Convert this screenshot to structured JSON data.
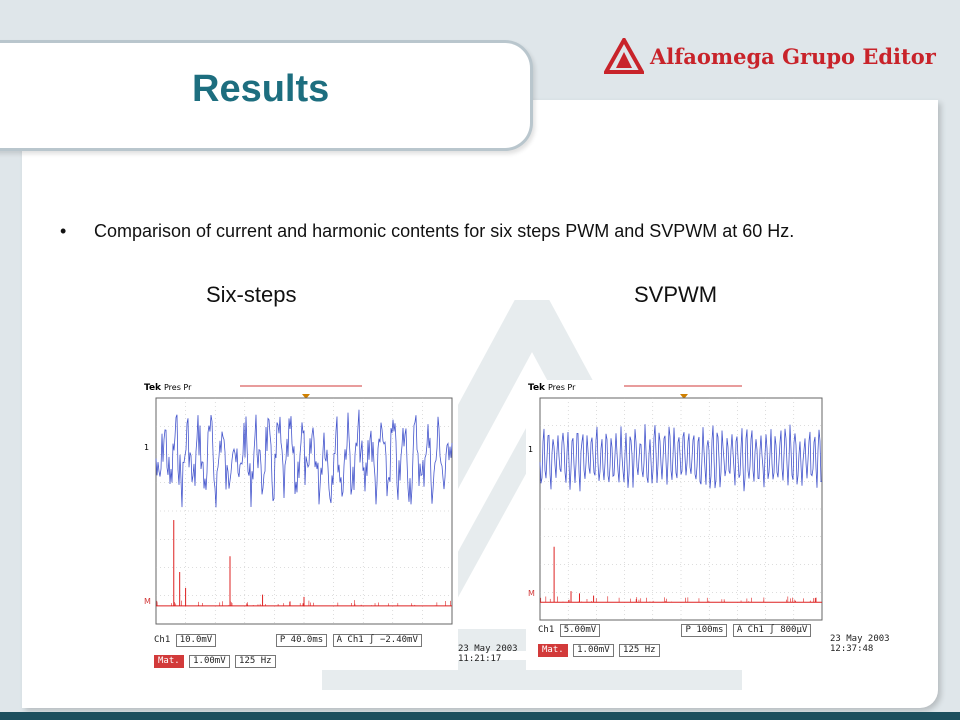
{
  "slide": {
    "title": "Results",
    "logo_text": "Alfaomega Grupo Editor",
    "bullet": "Comparison of current and harmonic contents for six steps PWM and SVPWM at 60 Hz.",
    "captions": {
      "left": "Six-steps",
      "right": "SVPWM"
    }
  },
  "colors": {
    "title": "#1d6e7f",
    "logo": "#c8232a",
    "trace_current": "#4455cc",
    "trace_fft": "#dd2020"
  },
  "scopes": [
    {
      "id": "six-steps",
      "brand": "Tek",
      "mode": "Pres Pr",
      "ch1_marker": "1",
      "math_marker": "M",
      "ch1_label": "Ch1",
      "ch1_scale": "10.0mV",
      "timebase": "P 40.0ms",
      "trigger": "A Ch1 ∫ −2.40mV",
      "math_label": "Mat.",
      "math_scale": "1.00mV",
      "math_freq": "125 Hz",
      "date": "23 May 2003",
      "time": "11:21:17"
    },
    {
      "id": "svpwm",
      "brand": "Tek",
      "mode": "Pres Pr",
      "ch1_marker": "1",
      "math_marker": "M",
      "ch1_label": "Ch1",
      "ch1_scale": "5.00mV",
      "timebase": "P 100ms",
      "trigger": "A Ch1 ∫ 800µV",
      "math_label": "Mat.",
      "math_scale": "1.00mV",
      "math_freq": "125 Hz",
      "date": "23 May 2003",
      "time": "12:37:48"
    }
  ]
}
